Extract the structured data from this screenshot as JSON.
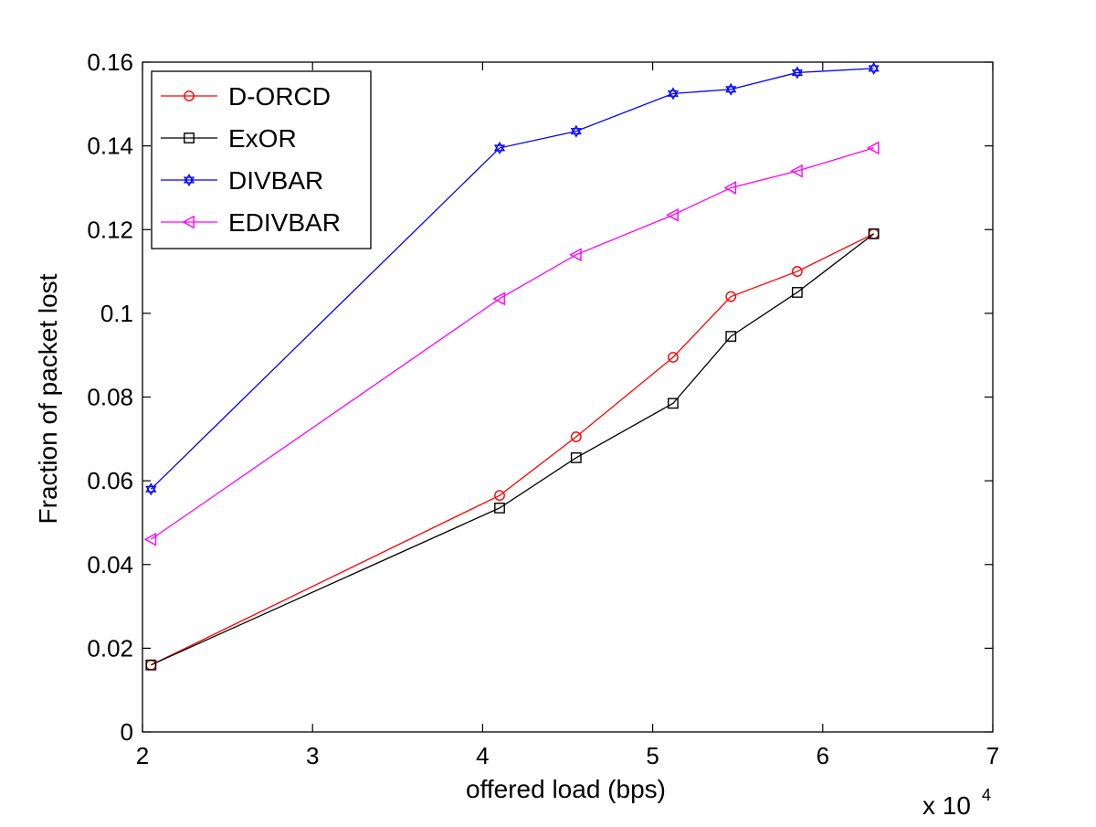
{
  "chart_data": {
    "type": "line",
    "title": "",
    "xlabel": "offered load (bps)",
    "ylabel": "Fraction of packet lost",
    "x_multiplier_label": "x 10",
    "x_multiplier_exponent": "4",
    "xlim": [
      2,
      7
    ],
    "ylim": [
      0,
      0.16
    ],
    "x_ticks": [
      2,
      3,
      4,
      5,
      6,
      7
    ],
    "x_tick_labels": [
      "2",
      "3",
      "4",
      "5",
      "6",
      "7"
    ],
    "y_ticks": [
      0,
      0.02,
      0.04,
      0.06,
      0.08,
      0.1,
      0.12,
      0.14,
      0.16
    ],
    "y_tick_labels": [
      "0",
      "0.02",
      "0.04",
      "0.06",
      "0.08",
      "0.1",
      "0.12",
      "0.14",
      "0.16"
    ],
    "grid": false,
    "legend_position": "top-left",
    "x": [
      2.05,
      4.1,
      4.55,
      5.12,
      5.46,
      5.85,
      6.3
    ],
    "series": [
      {
        "name": "D-ORCD",
        "color": "#ff0000",
        "marker": "circle",
        "values": [
          0.016,
          0.0565,
          0.0705,
          0.0895,
          0.104,
          0.11,
          0.119
        ]
      },
      {
        "name": "ExOR",
        "color": "#000000",
        "marker": "square",
        "values": [
          0.016,
          0.0535,
          0.0655,
          0.0785,
          0.0945,
          0.105,
          0.119
        ]
      },
      {
        "name": "DIVBAR",
        "color": "#0000ff",
        "marker": "hexagram",
        "values": [
          0.058,
          0.1395,
          0.1435,
          0.1525,
          0.1535,
          0.1575,
          0.1585
        ]
      },
      {
        "name": "EDIVBAR",
        "color": "#ff00ff",
        "marker": "triangle-left",
        "values": [
          0.046,
          0.1035,
          0.114,
          0.1235,
          0.13,
          0.134,
          0.1395
        ]
      }
    ]
  }
}
